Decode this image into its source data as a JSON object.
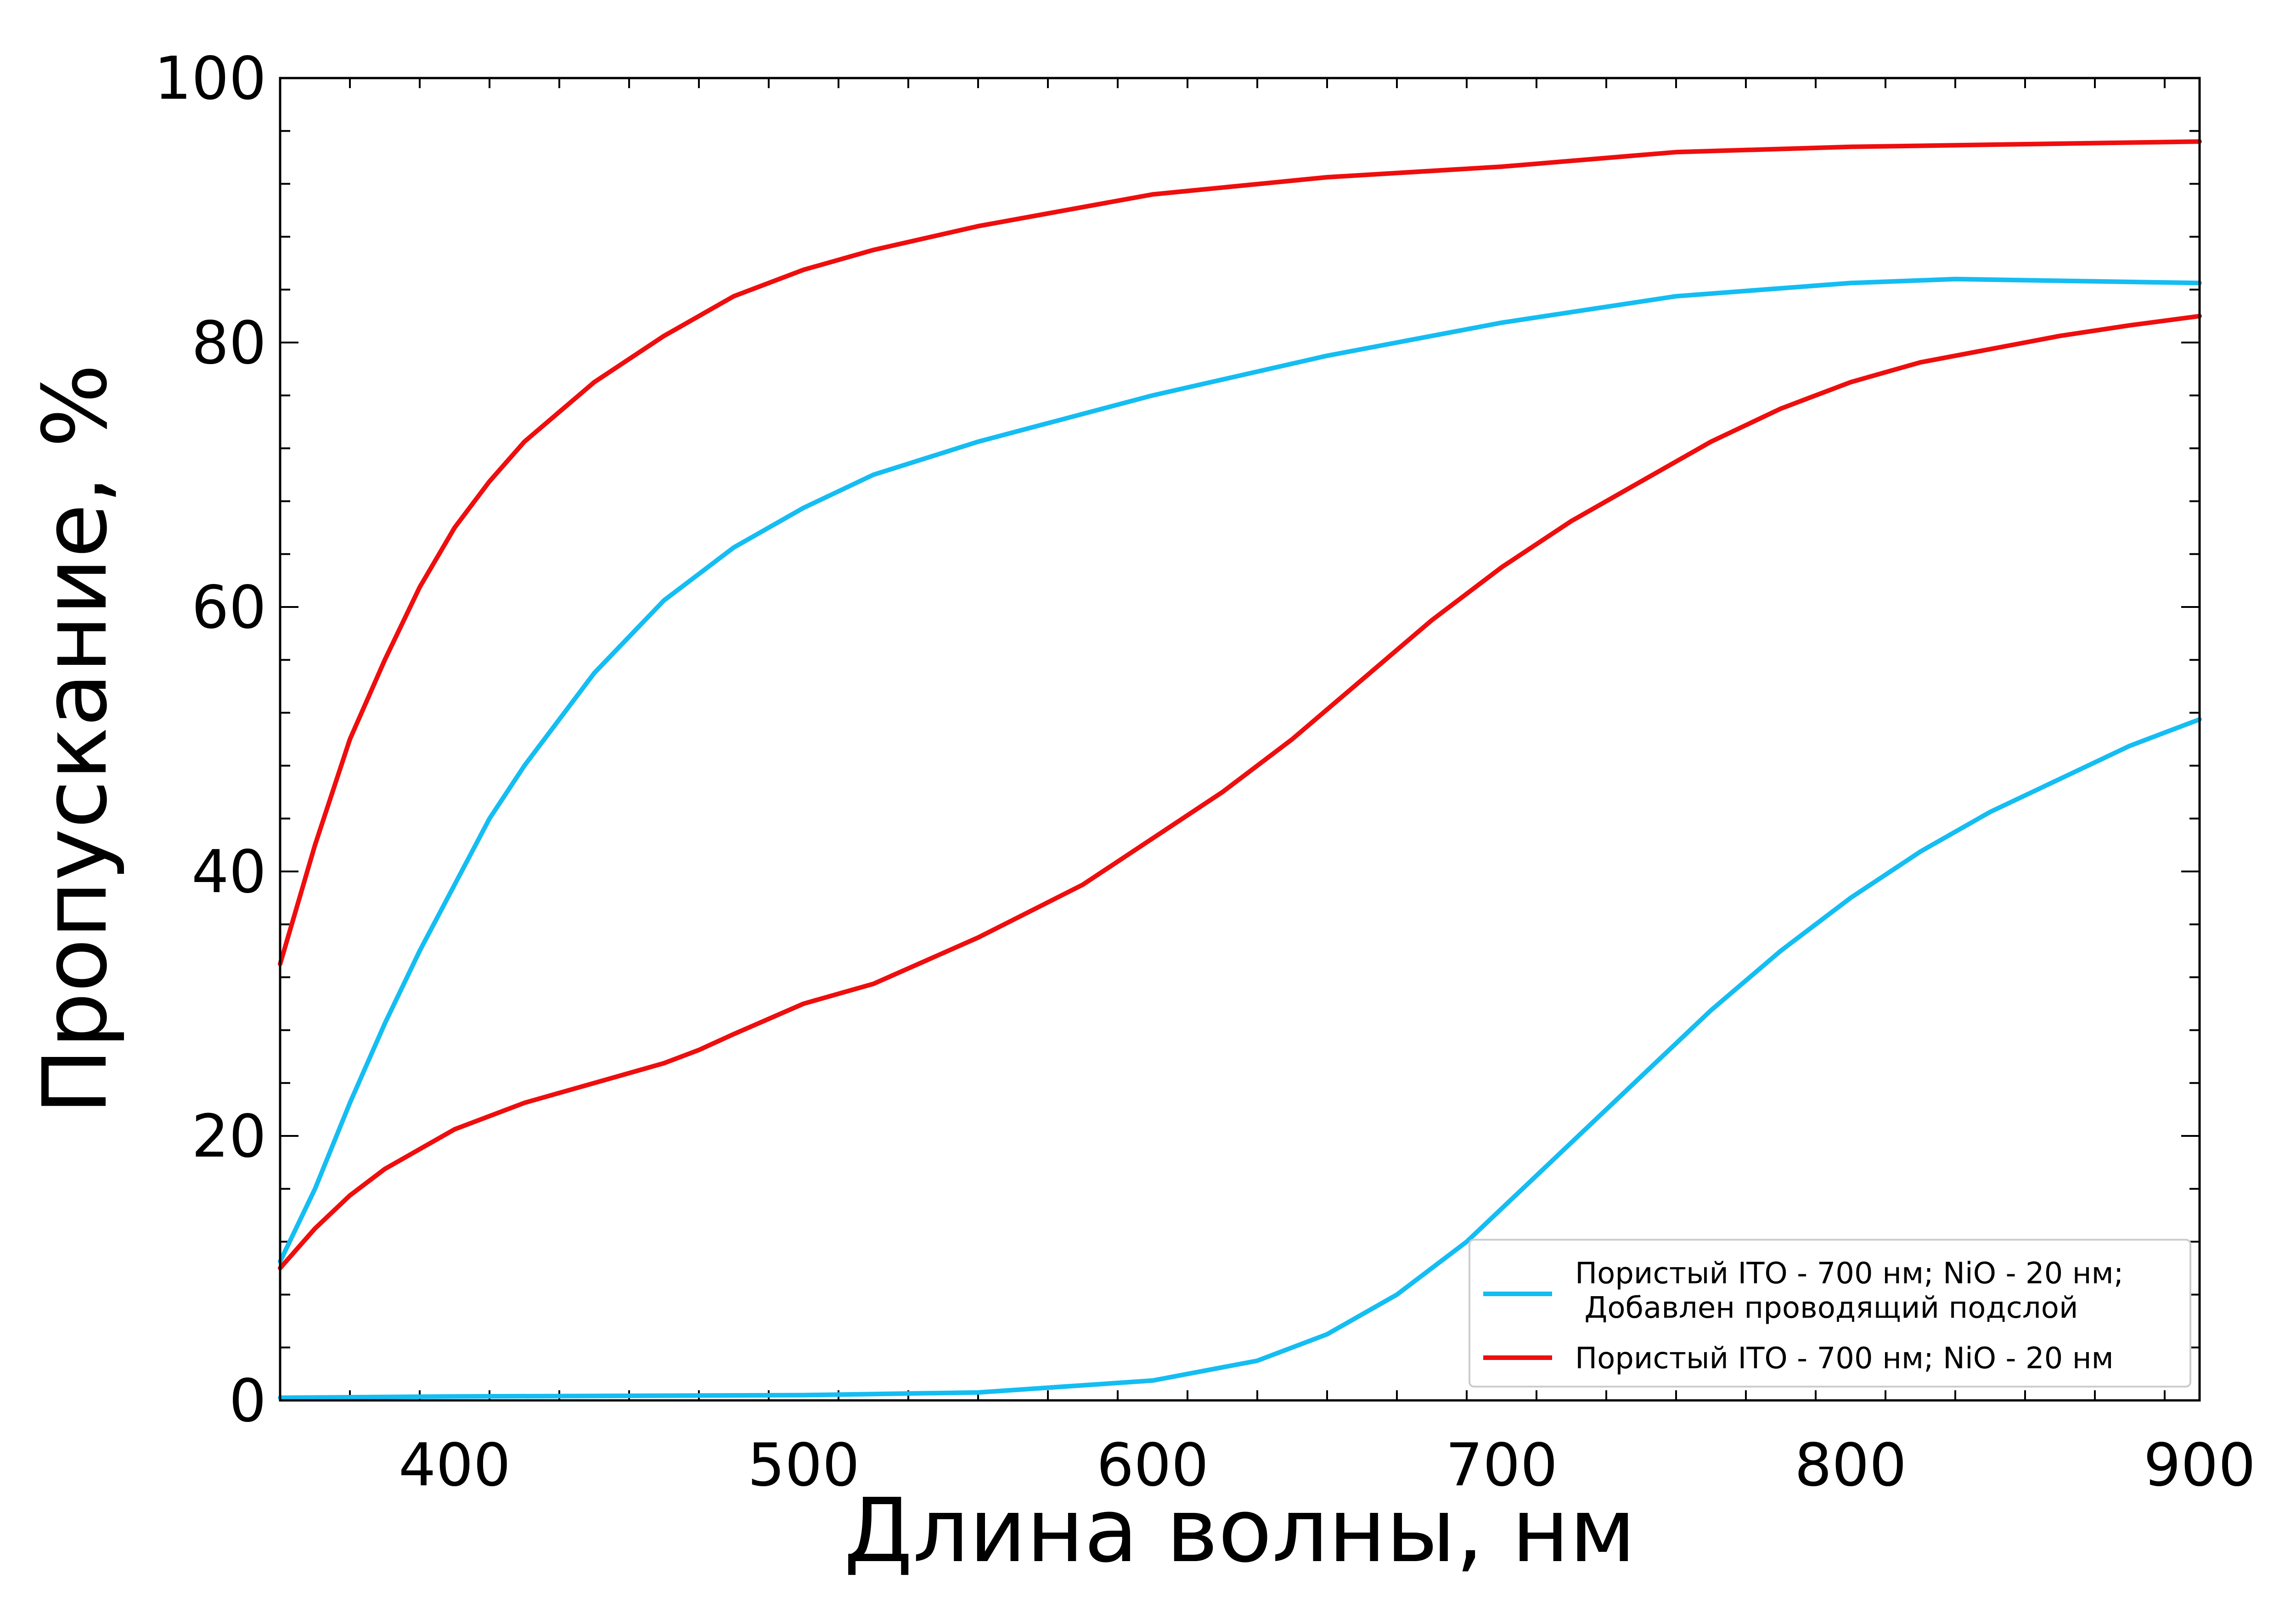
{
  "chart_data": {
    "type": "line",
    "title": "",
    "xlabel": "Длина волны, нм",
    "ylabel": "Пропускание, %",
    "xlim": [
      350,
      900
    ],
    "ylim": [
      0,
      100
    ],
    "x_ticks": [
      400,
      500,
      600,
      700,
      800,
      900
    ],
    "y_ticks": [
      0,
      20,
      40,
      60,
      80,
      100
    ],
    "grid": false,
    "legend_position": "bottom-right",
    "series": [
      {
        "name": "Пористый ITO - 700 нм; NiO - 20 нм;\n Добавлен проводящий подслой",
        "color": "#14bdf2",
        "curves": [
          {
            "x": [
              350,
              360,
              370,
              380,
              390,
              400,
              410,
              420,
              440,
              460,
              480,
              500,
              520,
              550,
              600,
              650,
              700,
              750,
              800,
              830,
              900
            ],
            "y": [
              10.5,
              16,
              22.5,
              28.5,
              34,
              39,
              44,
              48,
              55,
              60.5,
              64.5,
              67.5,
              70,
              72.5,
              76,
              79,
              81.5,
              83.5,
              84.5,
              84.8,
              84.5
            ]
          },
          {
            "x": [
              350,
              400,
              500,
              550,
              600,
              630,
              650,
              670,
              690,
              700,
              720,
              740,
              760,
              780,
              800,
              820,
              840,
              860,
              880,
              900
            ],
            "y": [
              0.2,
              0.3,
              0.4,
              0.6,
              1.5,
              3,
              5,
              8,
              12,
              14.5,
              19.5,
              24.5,
              29.5,
              34,
              38,
              41.5,
              44.5,
              47,
              49.5,
              51.5
            ]
          }
        ]
      },
      {
        "name": "Пористый ITO - 700 нм; NiO - 20 нм",
        "color": "#ee0e0e",
        "curves": [
          {
            "x": [
              350,
              360,
              370,
              380,
              390,
              400,
              410,
              420,
              440,
              460,
              480,
              500,
              520,
              550,
              600,
              650,
              700,
              750,
              800,
              850,
              900
            ],
            "y": [
              33,
              42,
              50,
              56,
              61.5,
              66,
              69.5,
              72.5,
              77,
              80.5,
              83.5,
              85.5,
              87,
              88.8,
              91.2,
              92.5,
              93.3,
              94.4,
              94.8,
              95,
              95.2
            ]
          },
          {
            "x": [
              350,
              360,
              370,
              380,
              400,
              420,
              440,
              460,
              470,
              480,
              500,
              520,
              550,
              580,
              600,
              620,
              640,
              660,
              680,
              700,
              720,
              740,
              760,
              780,
              800,
              820,
              840,
              860,
              880,
              900
            ],
            "y": [
              10,
              13,
              15.5,
              17.5,
              20.5,
              22.5,
              24,
              25.5,
              26.5,
              27.7,
              30,
              31.5,
              35,
              39,
              42.5,
              46,
              50,
              54.5,
              59,
              63,
              66.5,
              69.5,
              72.5,
              75,
              77,
              78.5,
              79.5,
              80.5,
              81.3,
              82
            ]
          }
        ]
      }
    ]
  }
}
